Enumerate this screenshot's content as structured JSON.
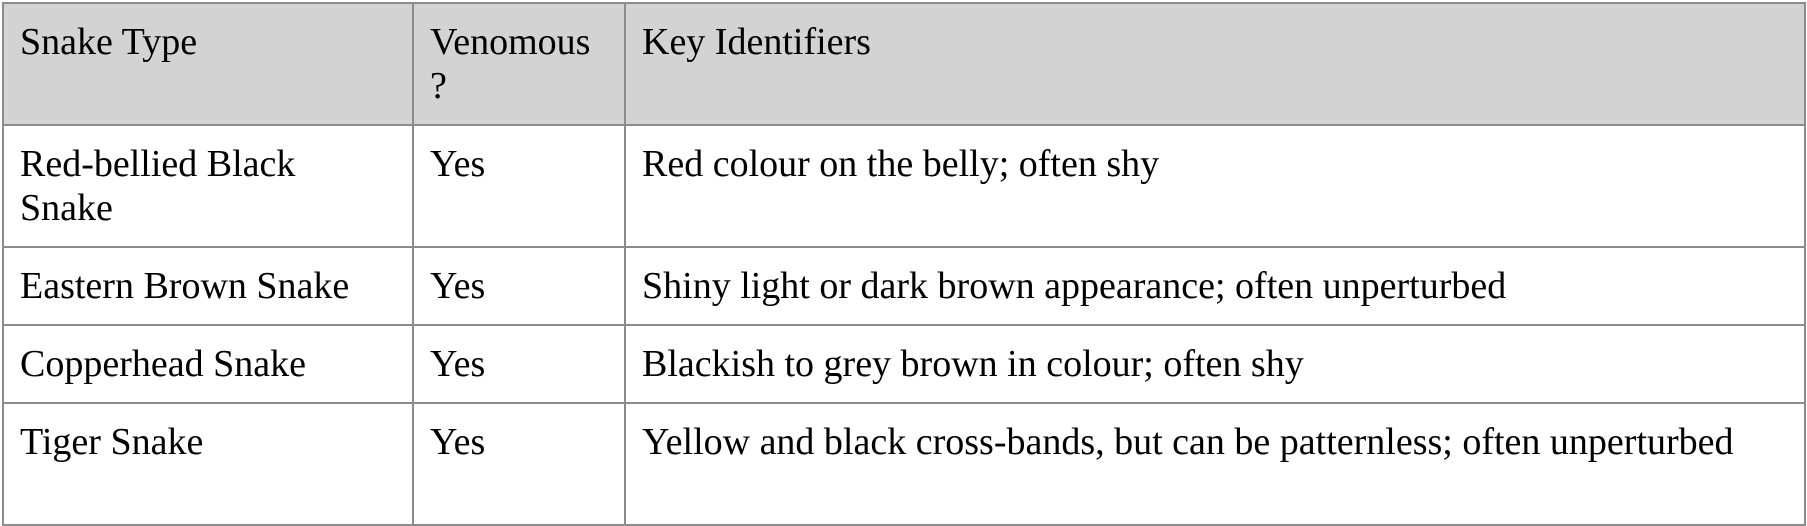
{
  "table": {
    "headers": [
      "Snake Type",
      "Venomous ?",
      "Key Identifiers"
    ],
    "rows": [
      [
        "Red-bellied Black Snake",
        "Yes",
        "Red colour on the belly; often shy"
      ],
      [
        "Eastern Brown Snake",
        "Yes",
        "Shiny light or dark brown appearance; often unperturbed"
      ],
      [
        "Copperhead Snake",
        "Yes",
        "Blackish to grey brown in colour; often shy"
      ],
      [
        "Tiger Snake",
        "Yes",
        "Yellow and black cross-bands, but can be patternless; often unperturbed"
      ]
    ]
  },
  "colors": {
    "header_background": "#d3d3d3",
    "border": "#8c8c8c",
    "text": "#000000"
  }
}
